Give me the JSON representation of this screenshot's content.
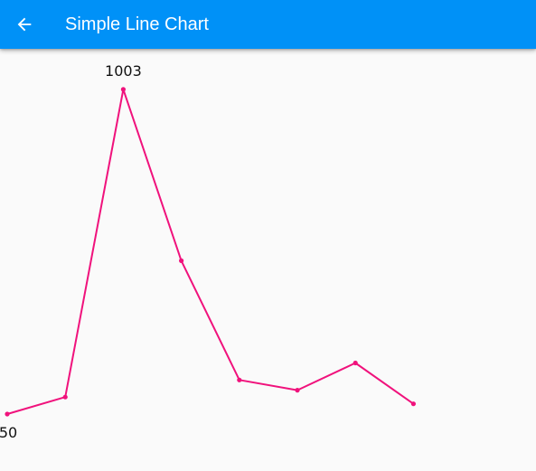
{
  "app_bar": {
    "title": "Simple Line Chart",
    "back_icon": "arrow-left-icon",
    "background_color": "#0091f7",
    "text_color": "#ffffff"
  },
  "chart_data": {
    "type": "line",
    "title": "",
    "xlabel": "",
    "ylabel": "",
    "x": [
      1,
      2,
      3,
      4,
      5,
      6,
      7,
      8
    ],
    "series": [
      {
        "values": [
          50,
          100,
          1003,
          500,
          150,
          120,
          200,
          80
        ]
      }
    ],
    "visible_data_labels": [
      "1003",
      "50"
    ],
    "color": "#f0127c",
    "grid": false,
    "legend": "none",
    "axes": "hidden"
  }
}
